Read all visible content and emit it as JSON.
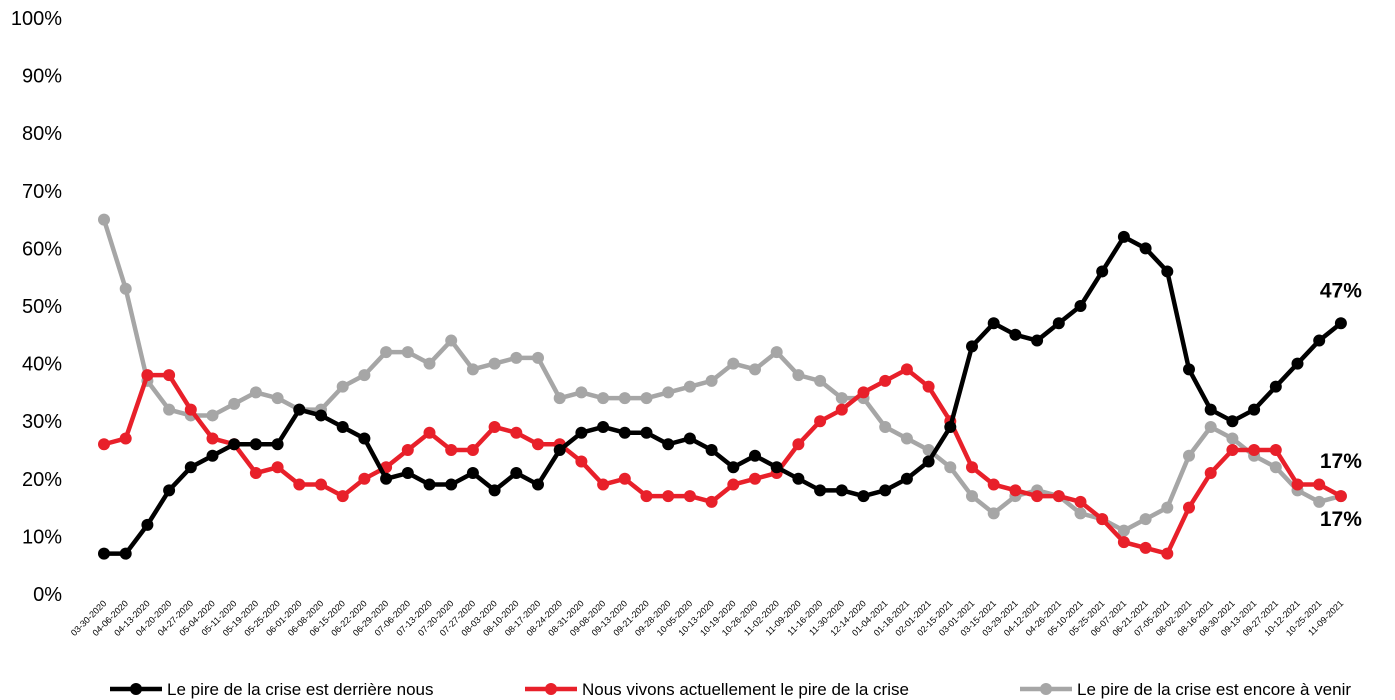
{
  "chart_data": {
    "type": "line",
    "title": "",
    "xlabel": "",
    "ylabel": "",
    "ylim": [
      0,
      100
    ],
    "yticks": [
      "0%",
      "10%",
      "20%",
      "30%",
      "40%",
      "50%",
      "60%",
      "70%",
      "80%",
      "90%",
      "100%"
    ],
    "grid": false,
    "legend_position": "bottom",
    "x": [
      "03-30-2020",
      "04-06-2020",
      "04-13-2020",
      "04-20-2020",
      "04-27-2020",
      "05-04-2020",
      "05-11-2020",
      "05-19-2020",
      "05-25-2020",
      "06-01-2020",
      "06-08-2020",
      "06-15-2020",
      "06-22-2020",
      "06-29-2020",
      "07-06-2020",
      "07-13-2020",
      "07-20-2020",
      "07-27-2020",
      "08-03-2020",
      "08-10-2020",
      "08-17-2020",
      "08-24-2020",
      "08-31-2020",
      "09-08-2020",
      "09-13-2020",
      "09-21-2020",
      "09-28-2020",
      "10-05-2020",
      "10-13-2020",
      "10-19-2020",
      "10-26-2020",
      "11-02-2020",
      "11-09-2020",
      "11-16-2020",
      "11-30-2020",
      "12-14-2020",
      "01-04-2021",
      "01-18-2021",
      "02-01-2021",
      "02-15-2021",
      "03-01-2021",
      "03-15-2021",
      "03-29-2021",
      "04-12-2021",
      "04-26-2021",
      "05-10-2021",
      "05-25-2021",
      "06-07-2021",
      "06-21-2021",
      "07-05-2021",
      "08-02-2021",
      "08-16-2021",
      "08-30-2021",
      "09-13-2021",
      "09-27-2021",
      "10-12-2021",
      "10-25-2021",
      "11-09-2021"
    ],
    "series": [
      {
        "name": "Le pire de la crise est derrière nous",
        "color": "#000000",
        "values": [
          7,
          7,
          12,
          18,
          22,
          24,
          26,
          26,
          26,
          32,
          31,
          29,
          27,
          20,
          21,
          19,
          19,
          21,
          18,
          21,
          19,
          25,
          28,
          29,
          28,
          28,
          26,
          27,
          25,
          22,
          24,
          22,
          20,
          18,
          18,
          17,
          18,
          20,
          23,
          29,
          43,
          47,
          45,
          44,
          47,
          50,
          56,
          62,
          60,
          56,
          39,
          32,
          30,
          32,
          36,
          40,
          44,
          47
        ],
        "end_label": "47%"
      },
      {
        "name": "Nous vivons actuellement le pire de la crise",
        "color": "#e8202a",
        "values": [
          26,
          27,
          38,
          38,
          32,
          27,
          26,
          21,
          22,
          19,
          19,
          17,
          20,
          22,
          25,
          28,
          25,
          25,
          29,
          28,
          26,
          26,
          23,
          19,
          20,
          17,
          17,
          17,
          16,
          19,
          20,
          21,
          26,
          30,
          32,
          35,
          37,
          39,
          36,
          30,
          22,
          19,
          18,
          17,
          17,
          16,
          13,
          9,
          8,
          7,
          15,
          21,
          25,
          25,
          25,
          19,
          19,
          17
        ],
        "end_label": "17%"
      },
      {
        "name": "Le pire de la crise est encore à venir",
        "color": "#a6a6a6",
        "values": [
          65,
          53,
          37,
          32,
          31,
          31,
          33,
          35,
          34,
          32,
          32,
          36,
          38,
          42,
          42,
          40,
          44,
          39,
          40,
          41,
          41,
          34,
          35,
          34,
          34,
          34,
          35,
          36,
          37,
          40,
          39,
          42,
          38,
          37,
          34,
          34,
          29,
          27,
          25,
          22,
          17,
          14,
          17,
          18,
          17,
          14,
          13,
          11,
          13,
          15,
          24,
          29,
          27,
          24,
          22,
          18,
          16,
          17
        ],
        "end_label": "17%"
      }
    ]
  }
}
